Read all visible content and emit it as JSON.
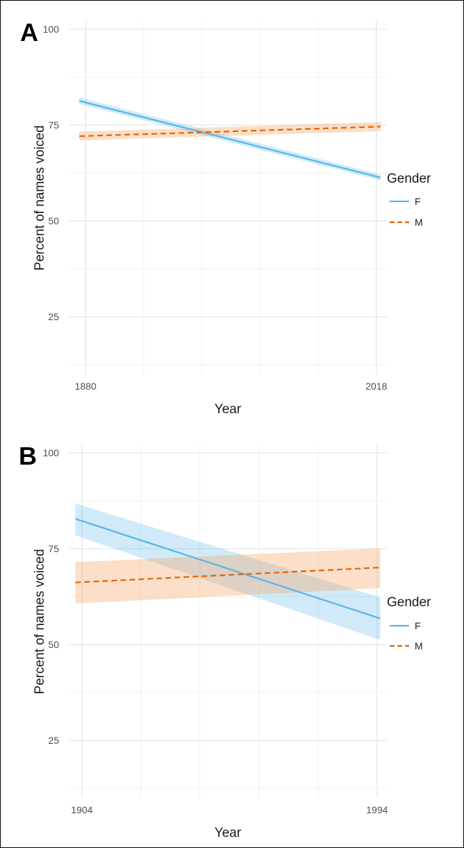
{
  "colors": {
    "F": "#56B4E9",
    "M": "#E66100",
    "F_band": "#56B4E9",
    "M_band": "#F4A460",
    "grid_major": "#e4e4e4",
    "grid_minor": "#f0f0f0"
  },
  "chart_data": [
    {
      "type": "line",
      "panel": "A",
      "xlabel": "Year",
      "ylabel": "Percent of names voiced",
      "xlim": [
        1872,
        2023
      ],
      "ylim": [
        10,
        102
      ],
      "x_ticks": [
        1880,
        2018
      ],
      "x_tick_labels": [
        "1880",
        "2018"
      ],
      "y_ticks": [
        25,
        50,
        75,
        100
      ],
      "y_tick_labels": [
        "25",
        "50",
        "75",
        "100"
      ],
      "grid": true,
      "legend_title": "Gender",
      "legend_position": "right",
      "series": [
        {
          "name": "F",
          "style": "solid",
          "x": [
            1877,
            2020
          ],
          "y": [
            81.3,
            61.3
          ],
          "ci_lower": [
            80.5,
            60.6
          ],
          "ci_upper": [
            82.2,
            62.1
          ]
        },
        {
          "name": "M",
          "style": "dashed",
          "x": [
            1877,
            2020
          ],
          "y": [
            72.1,
            74.6
          ],
          "ci_lower": [
            71.0,
            73.4
          ],
          "ci_upper": [
            73.3,
            75.8
          ]
        }
      ]
    },
    {
      "type": "line",
      "panel": "B",
      "xlabel": "Year",
      "ylabel": "Percent of names voiced",
      "xlim": [
        1900,
        1997
      ],
      "ylim": [
        10,
        102
      ],
      "x_ticks": [
        1904,
        1994
      ],
      "x_tick_labels": [
        "1904",
        "1994"
      ],
      "y_ticks": [
        25,
        50,
        75,
        100
      ],
      "y_tick_labels": [
        "25",
        "50",
        "75",
        "100"
      ],
      "grid": true,
      "legend_title": "Gender",
      "legend_position": "right",
      "series": [
        {
          "name": "F",
          "style": "solid",
          "x": [
            1902,
            1995
          ],
          "y": [
            82.8,
            56.8
          ],
          "ci_lower": [
            78.5,
            51.2
          ],
          "ci_upper": [
            86.8,
            62.3
          ]
        },
        {
          "name": "M",
          "style": "dashed",
          "x": [
            1902,
            1995
          ],
          "y": [
            66.2,
            70.1
          ],
          "ci_lower": [
            60.7,
            64.7
          ],
          "ci_upper": [
            71.5,
            75.1
          ]
        }
      ]
    }
  ]
}
